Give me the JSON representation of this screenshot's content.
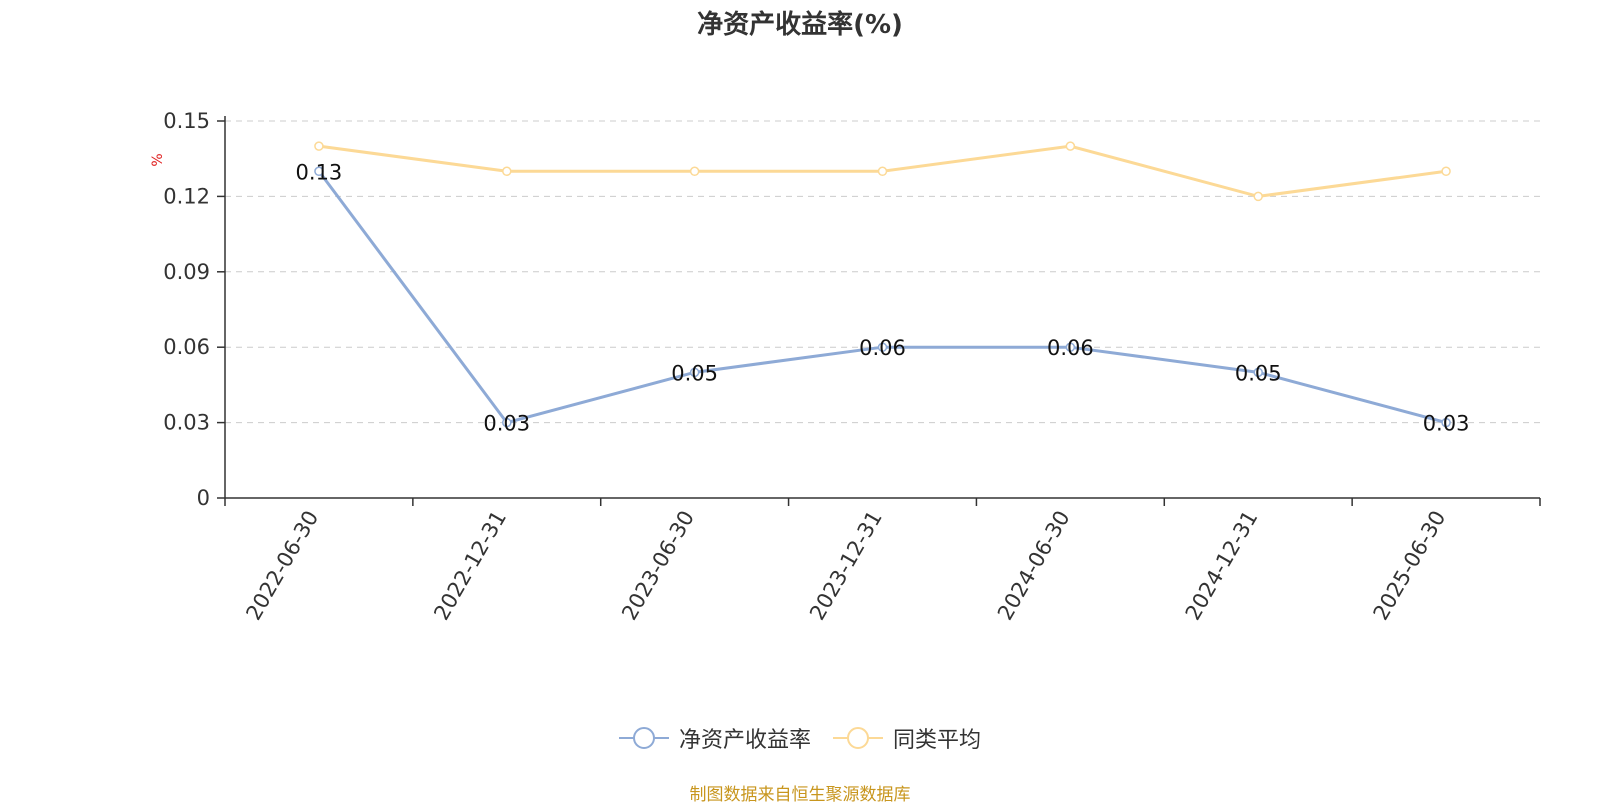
{
  "chart_data": {
    "type": "line",
    "title": "净资产收益率(%)",
    "ylabel": "%",
    "categories": [
      "2022-06-30",
      "2022-12-31",
      "2023-06-30",
      "2023-12-31",
      "2024-06-30",
      "2024-12-31",
      "2025-06-30"
    ],
    "series": [
      {
        "name": "净资产收益率",
        "values": [
          0.13,
          0.03,
          0.05,
          0.06,
          0.06,
          0.05,
          0.03
        ],
        "color": "#8eaad6",
        "data_labels": true
      },
      {
        "name": "同类平均",
        "values": [
          0.14,
          0.13,
          0.13,
          0.13,
          0.14,
          0.12,
          0.13
        ],
        "color": "#fcd996",
        "data_labels": false
      }
    ],
    "yticks": [
      "0",
      "0.03",
      "0.06",
      "0.09",
      "0.12",
      "0.15"
    ],
    "ylim": [
      0,
      0.15
    ],
    "grid": true,
    "legend_position": "bottom"
  },
  "footer": {
    "source_text": "制图数据来自恒生聚源数据库"
  }
}
